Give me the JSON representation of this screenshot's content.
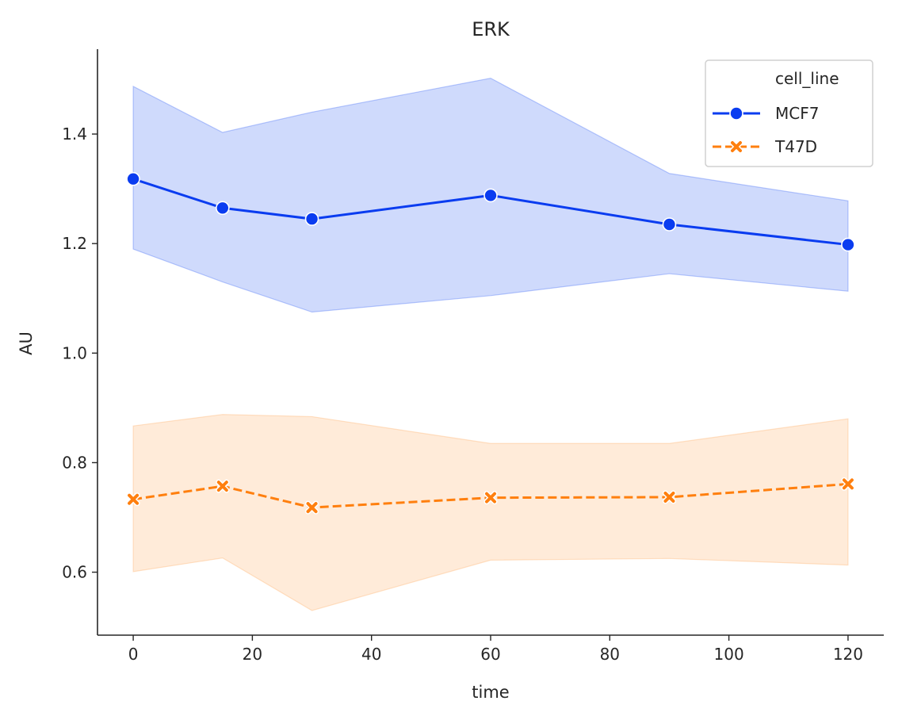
{
  "chart_data": {
    "type": "line",
    "title": "ERK",
    "xlabel": "time",
    "ylabel": "AU",
    "x": [
      0,
      15,
      30,
      60,
      90,
      120
    ],
    "xlim": [
      -6,
      126
    ],
    "ylim": [
      0.485,
      1.555
    ],
    "xticks": [
      0,
      20,
      40,
      60,
      80,
      100,
      120
    ],
    "yticks": [
      0.6,
      0.8,
      1.0,
      1.2,
      1.4
    ],
    "legend_title": "cell_line",
    "legend_position": "top-right",
    "series": [
      {
        "name": "MCF7",
        "color": "#0a3cf0",
        "band_color": "#3e6bf5",
        "marker": "circle",
        "dash": "solid",
        "values": [
          1.318,
          1.265,
          1.245,
          1.288,
          1.235,
          1.198
        ],
        "ci_lower": [
          1.19,
          1.13,
          1.075,
          1.105,
          1.145,
          1.113
        ],
        "ci_upper": [
          1.487,
          1.403,
          1.44,
          1.502,
          1.328,
          1.278
        ]
      },
      {
        "name": "T47D",
        "color": "#ff7f0e",
        "band_color": "#ffb066",
        "marker": "x",
        "dash": "dashed",
        "values": [
          0.733,
          0.757,
          0.718,
          0.736,
          0.737,
          0.761
        ],
        "ci_lower": [
          0.601,
          0.626,
          0.53,
          0.622,
          0.625,
          0.613
        ],
        "ci_upper": [
          0.867,
          0.888,
          0.884,
          0.835,
          0.835,
          0.88
        ]
      }
    ]
  }
}
